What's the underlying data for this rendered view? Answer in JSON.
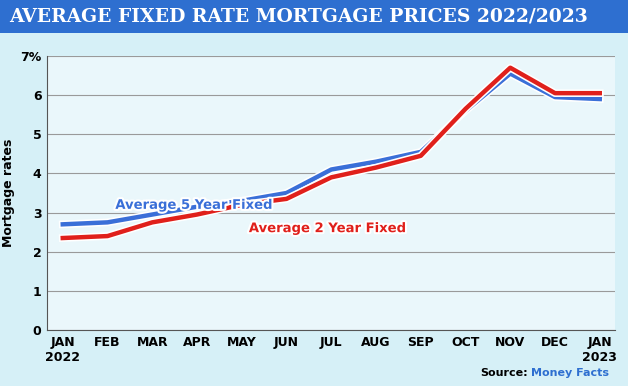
{
  "chart_data": {
    "type": "line",
    "title": "AVERAGE FIXED RATE MORTGAGE PRICES 2022/2023",
    "y_label": "Mortgage rates",
    "source_label": "Source:",
    "source": "Money Facts",
    "categories": [
      "JAN\n2022",
      "FEB",
      "MAR",
      "APR",
      "MAY",
      "JUN",
      "JUL",
      "AUG",
      "SEP",
      "OCT",
      "NOV",
      "DEC",
      "JAN\n2023"
    ],
    "series": [
      {
        "name": "Average 5 Year Fixed",
        "color": "#3a6fd8",
        "values": [
          2.7,
          2.75,
          2.95,
          3.15,
          3.3,
          3.5,
          4.1,
          4.3,
          4.55,
          5.6,
          6.55,
          5.95,
          5.9
        ]
      },
      {
        "name": "Average 2 Year Fixed",
        "color": "#e0201b",
        "values": [
          2.35,
          2.4,
          2.75,
          2.95,
          3.2,
          3.35,
          3.9,
          4.15,
          4.45,
          5.65,
          6.7,
          6.05,
          6.05
        ]
      }
    ],
    "ylim": [
      0,
      7
    ],
    "yticks": [
      0,
      1,
      2,
      3,
      4,
      5,
      6,
      {
        "value": 7,
        "label": "7%"
      }
    ],
    "grid": true
  }
}
